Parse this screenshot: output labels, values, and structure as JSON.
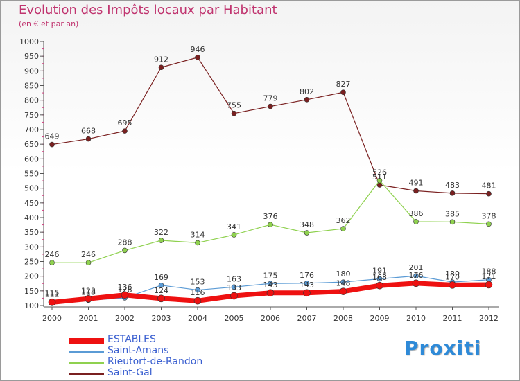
{
  "title": "Evolution des Impôts locaux par Habitant",
  "subtitle": "(en € et par an)",
  "brand": "Proxiti",
  "chart_data": {
    "type": "line",
    "title": "Evolution des Impôts locaux par Habitant",
    "subtitle": "(en € et par an)",
    "xlabel": "",
    "ylabel": "",
    "x": [
      2000,
      2001,
      2002,
      2003,
      2004,
      2005,
      2006,
      2007,
      2008,
      2009,
      2010,
      2011,
      2012
    ],
    "x_tick_labels": [
      "2000",
      "2001",
      "2002",
      "2003",
      "2004",
      "2005",
      "2006",
      "2007",
      "2008",
      "2009",
      "2010",
      "2011",
      "2012"
    ],
    "ylim": [
      100,
      1000
    ],
    "y_ticks": [
      100,
      150,
      200,
      250,
      300,
      350,
      400,
      450,
      500,
      550,
      600,
      650,
      700,
      750,
      800,
      850,
      900,
      950,
      1000
    ],
    "grid": false,
    "legend_position": "bottom-left",
    "series": [
      {
        "name": "ESTABLES",
        "color": "#ee1111",
        "values": [
          111,
          123,
          136,
          124,
          116,
          133,
          143,
          143,
          148,
          168,
          176,
          170,
          171
        ]
      },
      {
        "name": "Saint-Amans",
        "color": "#5b9bd5",
        "values": [
          115,
          118,
          126,
          169,
          153,
          163,
          175,
          176,
          180,
          191,
          201,
          180,
          188
        ]
      },
      {
        "name": "Rieutort-de-Randon",
        "color": "#8fd14f",
        "values": [
          246,
          246,
          288,
          322,
          314,
          341,
          376,
          348,
          362,
          526,
          386,
          385,
          378
        ]
      },
      {
        "name": "Saint-Gal",
        "color": "#7a2020",
        "values": [
          649,
          668,
          695,
          912,
          946,
          755,
          779,
          802,
          827,
          511,
          491,
          483,
          481
        ]
      }
    ]
  }
}
